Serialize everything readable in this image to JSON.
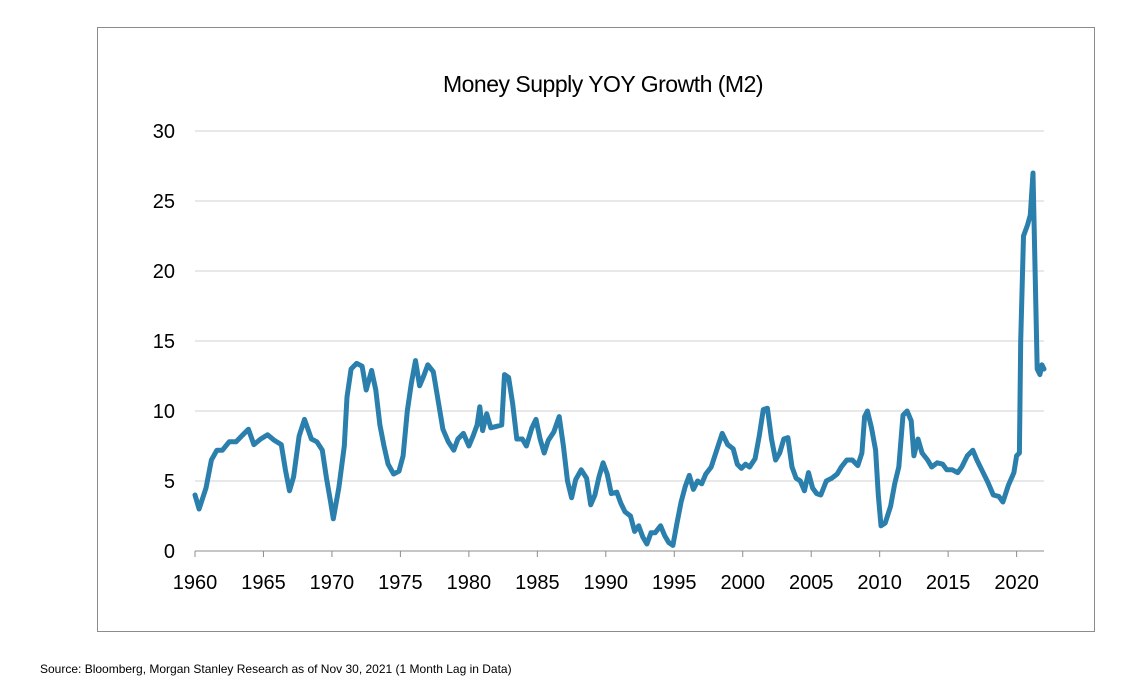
{
  "chart_data": {
    "type": "line",
    "title": "Money Supply YOY Growth (M2)",
    "xlabel": "",
    "ylabel": "",
    "xlim": [
      1960,
      2022
    ],
    "ylim": [
      0,
      30
    ],
    "x_ticks": [
      "1960",
      "1965",
      "1970",
      "1975",
      "1980",
      "1985",
      "1990",
      "1995",
      "2000",
      "2005",
      "2010",
      "2015",
      "2020"
    ],
    "y_ticks": [
      "0",
      "5",
      "10",
      "15",
      "20",
      "25",
      "30"
    ],
    "grid": true,
    "legend": "none",
    "line_color": "#2a7fad",
    "series": [
      {
        "name": "M2 YoY Growth",
        "points": [
          [
            1960.0,
            4.0
          ],
          [
            1960.3,
            3.0
          ],
          [
            1960.8,
            4.5
          ],
          [
            1961.2,
            6.5
          ],
          [
            1961.6,
            7.2
          ],
          [
            1962.0,
            7.2
          ],
          [
            1962.5,
            7.8
          ],
          [
            1963.0,
            7.8
          ],
          [
            1963.5,
            8.3
          ],
          [
            1963.9,
            8.7
          ],
          [
            1964.3,
            7.6
          ],
          [
            1964.8,
            8.0
          ],
          [
            1965.3,
            8.3
          ],
          [
            1965.8,
            7.9
          ],
          [
            1966.3,
            7.6
          ],
          [
            1966.6,
            5.8
          ],
          [
            1966.9,
            4.3
          ],
          [
            1967.2,
            5.3
          ],
          [
            1967.6,
            8.2
          ],
          [
            1968.0,
            9.4
          ],
          [
            1968.5,
            8.0
          ],
          [
            1968.9,
            7.8
          ],
          [
            1969.3,
            7.2
          ],
          [
            1969.6,
            5.2
          ],
          [
            1969.9,
            3.5
          ],
          [
            1970.1,
            2.3
          ],
          [
            1970.5,
            4.5
          ],
          [
            1970.9,
            7.5
          ],
          [
            1971.1,
            11.0
          ],
          [
            1971.4,
            13.0
          ],
          [
            1971.8,
            13.4
          ],
          [
            1972.2,
            13.2
          ],
          [
            1972.5,
            11.5
          ],
          [
            1972.9,
            12.9
          ],
          [
            1973.2,
            11.5
          ],
          [
            1973.5,
            9.0
          ],
          [
            1973.8,
            7.5
          ],
          [
            1974.1,
            6.2
          ],
          [
            1974.5,
            5.5
          ],
          [
            1974.9,
            5.7
          ],
          [
            1975.2,
            6.8
          ],
          [
            1975.5,
            10.0
          ],
          [
            1975.8,
            12.0
          ],
          [
            1976.1,
            13.6
          ],
          [
            1976.4,
            11.8
          ],
          [
            1976.7,
            12.5
          ],
          [
            1977.0,
            13.3
          ],
          [
            1977.4,
            12.8
          ],
          [
            1977.8,
            10.5
          ],
          [
            1978.1,
            8.7
          ],
          [
            1978.5,
            7.8
          ],
          [
            1978.9,
            7.2
          ],
          [
            1979.2,
            8.0
          ],
          [
            1979.6,
            8.4
          ],
          [
            1980.0,
            7.5
          ],
          [
            1980.3,
            8.2
          ],
          [
            1980.6,
            9.0
          ],
          [
            1980.8,
            10.3
          ],
          [
            1981.0,
            8.6
          ],
          [
            1981.3,
            9.8
          ],
          [
            1981.6,
            8.8
          ],
          [
            1982.0,
            8.9
          ],
          [
            1982.4,
            9.0
          ],
          [
            1982.6,
            12.6
          ],
          [
            1982.9,
            12.4
          ],
          [
            1983.2,
            10.5
          ],
          [
            1983.5,
            8.0
          ],
          [
            1983.9,
            8.0
          ],
          [
            1984.2,
            7.5
          ],
          [
            1984.6,
            8.8
          ],
          [
            1984.9,
            9.4
          ],
          [
            1985.2,
            8.0
          ],
          [
            1985.5,
            7.0
          ],
          [
            1985.8,
            7.9
          ],
          [
            1986.2,
            8.5
          ],
          [
            1986.6,
            9.6
          ],
          [
            1986.9,
            7.5
          ],
          [
            1987.2,
            5.0
          ],
          [
            1987.5,
            3.8
          ],
          [
            1987.8,
            5.1
          ],
          [
            1988.2,
            5.8
          ],
          [
            1988.6,
            5.2
          ],
          [
            1988.9,
            3.3
          ],
          [
            1989.2,
            4.0
          ],
          [
            1989.5,
            5.3
          ],
          [
            1989.8,
            6.3
          ],
          [
            1990.1,
            5.5
          ],
          [
            1990.4,
            4.1
          ],
          [
            1990.8,
            4.2
          ],
          [
            1991.1,
            3.4
          ],
          [
            1991.4,
            2.8
          ],
          [
            1991.8,
            2.5
          ],
          [
            1992.1,
            1.4
          ],
          [
            1992.4,
            1.8
          ],
          [
            1992.7,
            1.0
          ],
          [
            1993.0,
            0.5
          ],
          [
            1993.3,
            1.3
          ],
          [
            1993.6,
            1.3
          ],
          [
            1994.0,
            1.8
          ],
          [
            1994.3,
            1.1
          ],
          [
            1994.6,
            0.6
          ],
          [
            1994.9,
            0.4
          ],
          [
            1995.2,
            2.0
          ],
          [
            1995.5,
            3.5
          ],
          [
            1995.8,
            4.6
          ],
          [
            1996.1,
            5.4
          ],
          [
            1996.4,
            4.4
          ],
          [
            1996.7,
            5.0
          ],
          [
            1997.0,
            4.8
          ],
          [
            1997.3,
            5.5
          ],
          [
            1997.7,
            6.0
          ],
          [
            1998.1,
            7.2
          ],
          [
            1998.5,
            8.4
          ],
          [
            1998.9,
            7.6
          ],
          [
            1999.3,
            7.3
          ],
          [
            1999.6,
            6.2
          ],
          [
            1999.9,
            5.9
          ],
          [
            2000.2,
            6.2
          ],
          [
            2000.5,
            6.0
          ],
          [
            2000.9,
            6.6
          ],
          [
            2001.2,
            8.2
          ],
          [
            2001.5,
            10.1
          ],
          [
            2001.8,
            10.2
          ],
          [
            2002.1,
            8.0
          ],
          [
            2002.4,
            6.5
          ],
          [
            2002.7,
            7.0
          ],
          [
            2003.0,
            8.0
          ],
          [
            2003.3,
            8.1
          ],
          [
            2003.6,
            6.0
          ],
          [
            2003.9,
            5.2
          ],
          [
            2004.2,
            5.0
          ],
          [
            2004.5,
            4.3
          ],
          [
            2004.8,
            5.6
          ],
          [
            2005.1,
            4.5
          ],
          [
            2005.4,
            4.1
          ],
          [
            2005.7,
            4.0
          ],
          [
            2006.1,
            5.0
          ],
          [
            2006.5,
            5.2
          ],
          [
            2006.9,
            5.5
          ],
          [
            2007.2,
            6.0
          ],
          [
            2007.6,
            6.5
          ],
          [
            2008.0,
            6.5
          ],
          [
            2008.4,
            6.1
          ],
          [
            2008.7,
            7.0
          ],
          [
            2008.9,
            9.6
          ],
          [
            2009.1,
            10.0
          ],
          [
            2009.4,
            8.8
          ],
          [
            2009.7,
            7.2
          ],
          [
            2009.9,
            4.0
          ],
          [
            2010.1,
            1.8
          ],
          [
            2010.4,
            2.0
          ],
          [
            2010.8,
            3.2
          ],
          [
            2011.1,
            4.8
          ],
          [
            2011.4,
            6.0
          ],
          [
            2011.7,
            9.7
          ],
          [
            2012.0,
            10.0
          ],
          [
            2012.3,
            9.3
          ],
          [
            2012.5,
            6.8
          ],
          [
            2012.8,
            8.0
          ],
          [
            2013.1,
            7.0
          ],
          [
            2013.5,
            6.5
          ],
          [
            2013.8,
            6.0
          ],
          [
            2014.2,
            6.3
          ],
          [
            2014.6,
            6.2
          ],
          [
            2014.9,
            5.8
          ],
          [
            2015.3,
            5.8
          ],
          [
            2015.7,
            5.6
          ],
          [
            2016.0,
            6.0
          ],
          [
            2016.4,
            6.8
          ],
          [
            2016.8,
            7.2
          ],
          [
            2017.1,
            6.5
          ],
          [
            2017.5,
            5.7
          ],
          [
            2017.9,
            4.9
          ],
          [
            2018.3,
            4.0
          ],
          [
            2018.7,
            3.9
          ],
          [
            2019.0,
            3.5
          ],
          [
            2019.4,
            4.7
          ],
          [
            2019.8,
            5.6
          ],
          [
            2020.0,
            6.8
          ],
          [
            2020.2,
            7.0
          ],
          [
            2020.3,
            15.0
          ],
          [
            2020.5,
            22.5
          ],
          [
            2020.8,
            23.3
          ],
          [
            2021.0,
            24.0
          ],
          [
            2021.2,
            27.0
          ],
          [
            2021.35,
            20.0
          ],
          [
            2021.5,
            13.0
          ],
          [
            2021.7,
            12.6
          ],
          [
            2021.85,
            13.3
          ],
          [
            2022.0,
            13.0
          ]
        ]
      }
    ]
  },
  "footer": {
    "source": "Source: Bloomberg, Morgan Stanley Research as of Nov 30, 2021 (1 Month Lag in Data)"
  }
}
